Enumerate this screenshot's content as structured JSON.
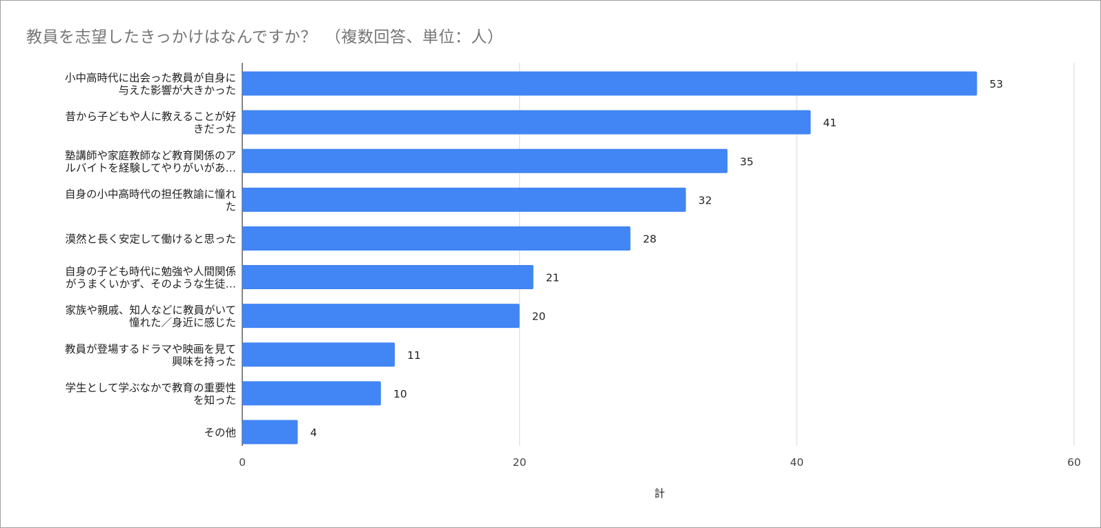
{
  "chart_data": {
    "type": "bar",
    "orientation": "horizontal",
    "title": "教員を志望したきっかけはなんですか？　（複数回答、単位：人）",
    "xlabel": "計",
    "ylabel": "",
    "xlim": [
      0,
      60
    ],
    "ticks": [
      "0",
      "20",
      "40",
      "60"
    ],
    "grid": true,
    "legend": "none",
    "bar_color": "#4285f4",
    "categories": [
      [
        "小中高時代に出会った教員が自身に",
        "与えた影響が大きかった"
      ],
      [
        "昔から子どもや人に教えることが好",
        "きだった"
      ],
      [
        "塾講師や家庭教師など教育関係のア",
        "ルバイトを経験してやりがいがあ…"
      ],
      [
        "自身の小中高時代の担任教諭に憧れ",
        "た"
      ],
      [
        "漠然と長く安定して働けると思った"
      ],
      [
        "自身の子ども時代に勉強や人間関係",
        "がうまくいかず、そのような生徒…"
      ],
      [
        "家族や親戚、知人などに教員がいて",
        "憧れた／身近に感じた"
      ],
      [
        "教員が登場するドラマや映画を見て",
        "興味を持った"
      ],
      [
        "学生として学ぶなかで教育の重要性",
        "を知った"
      ],
      [
        "その他"
      ]
    ],
    "values": [
      53,
      41,
      35,
      32,
      28,
      21,
      20,
      11,
      10,
      4
    ]
  }
}
